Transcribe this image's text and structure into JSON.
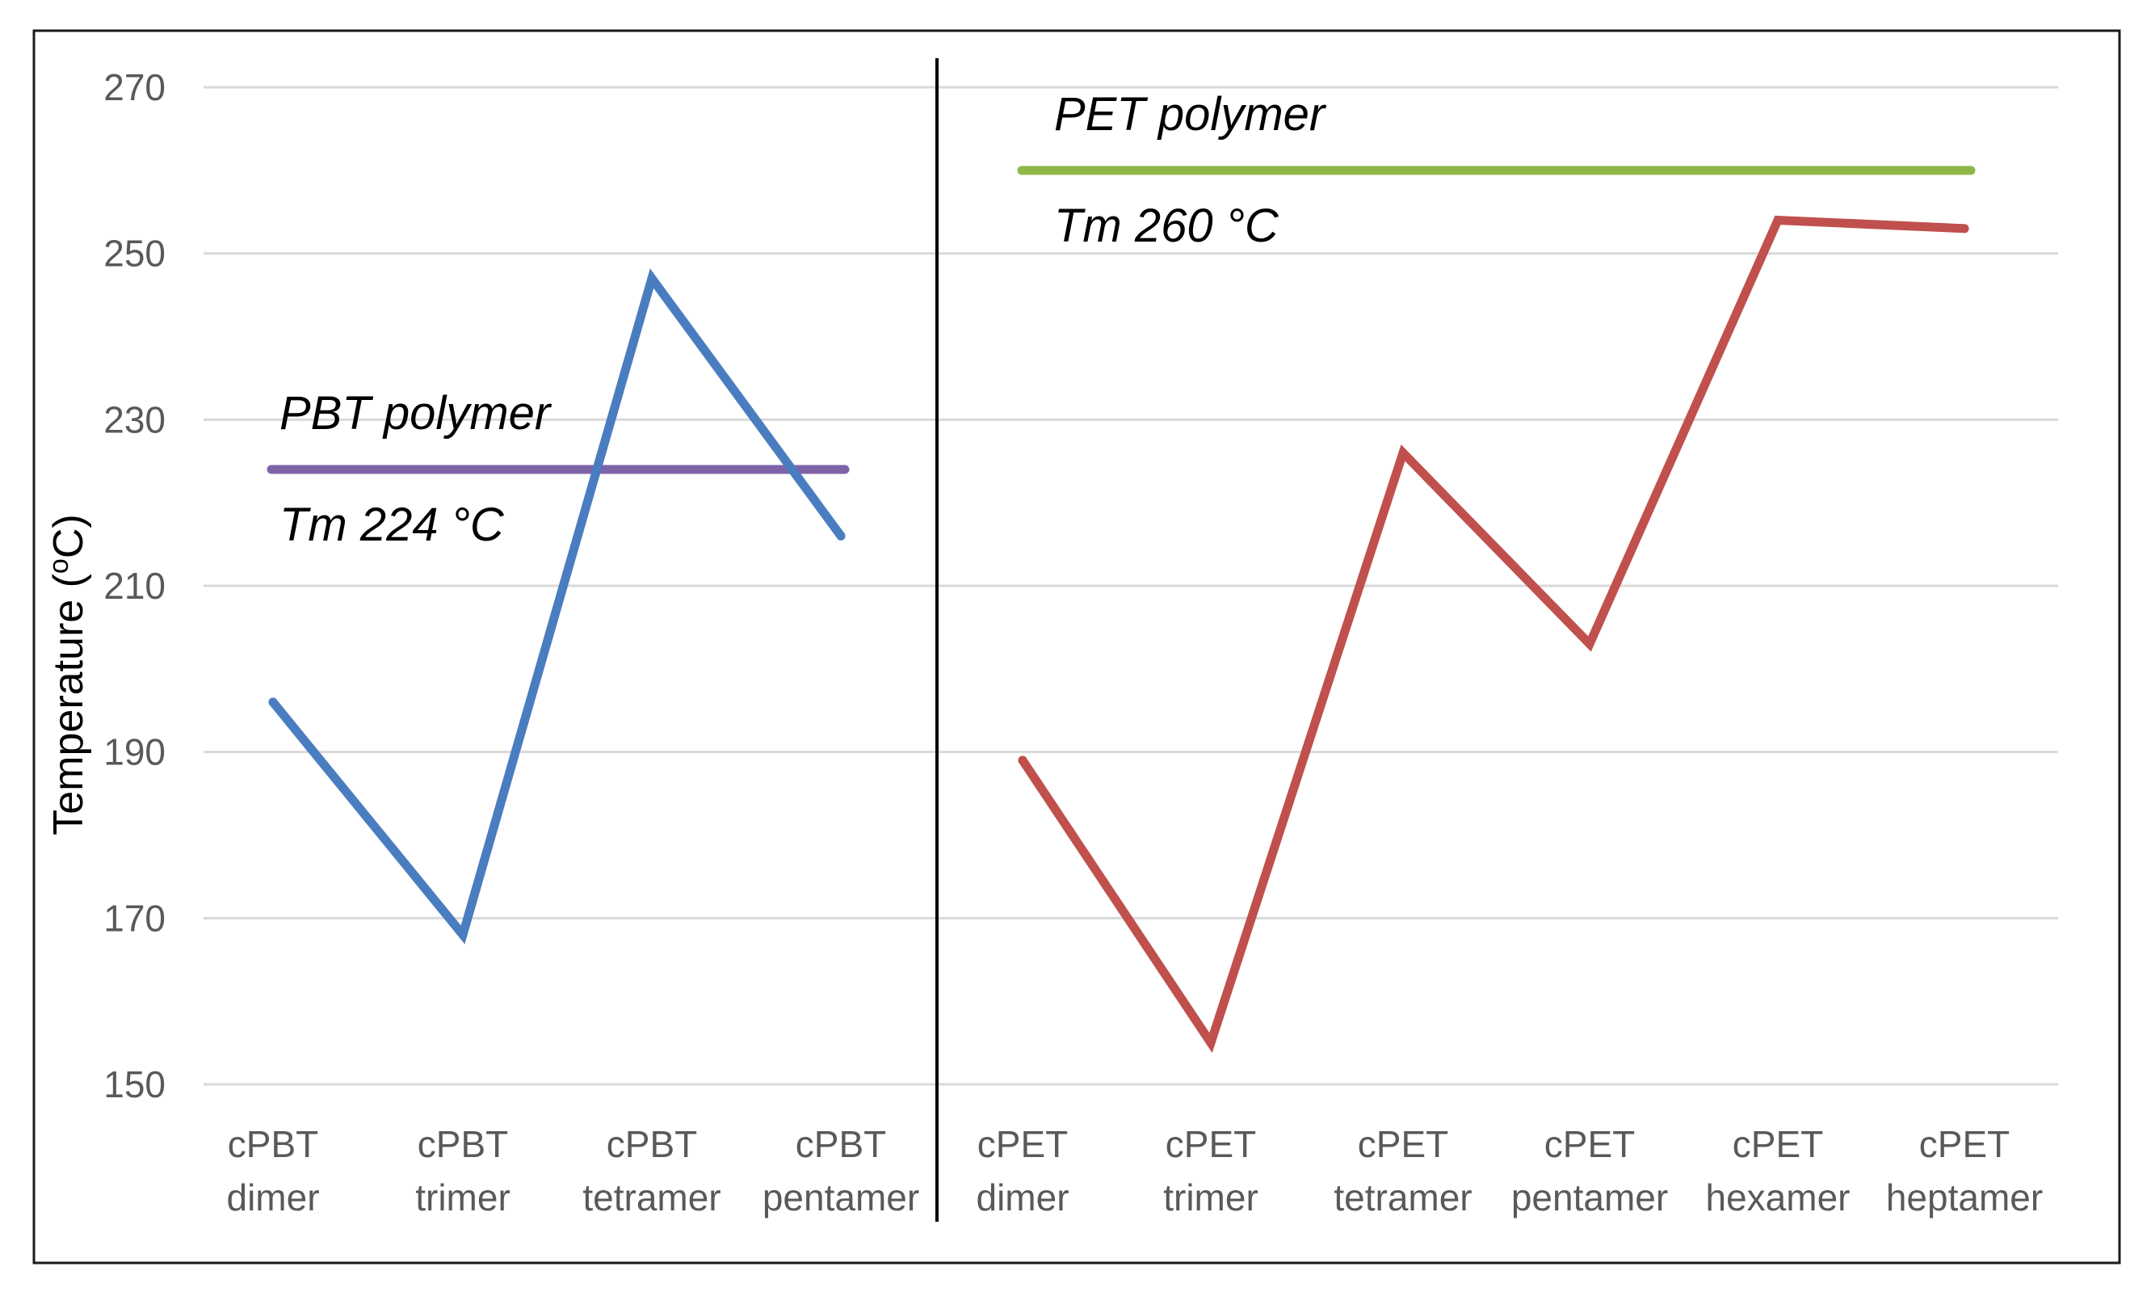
{
  "chart_data": {
    "type": "line",
    "ylabel": "Temperature (°C)",
    "ylabel_parts": {
      "main": "Temperature (",
      "sup": "o",
      "tail": "C)"
    },
    "ylim": [
      150,
      270
    ],
    "yticks": [
      "150",
      "170",
      "190",
      "210",
      "230",
      "250",
      "270"
    ],
    "grid": true,
    "panels": [
      {
        "name": "PBT",
        "categories": [
          [
            "cPBT",
            "dimer"
          ],
          [
            "cPBT",
            "trimer"
          ],
          [
            "cPBT",
            "tetramer"
          ],
          [
            "cPBT",
            "pentamer"
          ]
        ],
        "series": [
          {
            "values": [
              196,
              168,
              247,
              216
            ],
            "color": "#4a7dc0"
          }
        ],
        "reference": {
          "value": 224,
          "color": "#7f63a8",
          "label_top": "PBT polymer",
          "label_bottom": "Tm 224 °C"
        }
      },
      {
        "name": "PET",
        "categories": [
          [
            "cPET",
            "dimer"
          ],
          [
            "cPET",
            "trimer"
          ],
          [
            "cPET",
            "tetramer"
          ],
          [
            "cPET",
            "pentamer"
          ],
          [
            "cPET",
            "hexamer"
          ],
          [
            "cPET",
            "heptamer"
          ]
        ],
        "series": [
          {
            "values": [
              189,
              155,
              226,
              203,
              254,
              253
            ],
            "color": "#c0504d"
          }
        ],
        "reference": {
          "value": 260,
          "color": "#8fb848",
          "label_top": "PET polymer",
          "label_bottom": "Tm 260 °C"
        }
      }
    ]
  },
  "colors": {
    "grid": "#d9d9d9",
    "frame": "#1a1a1a",
    "divider": "#000000",
    "tick_text": "#595959"
  }
}
